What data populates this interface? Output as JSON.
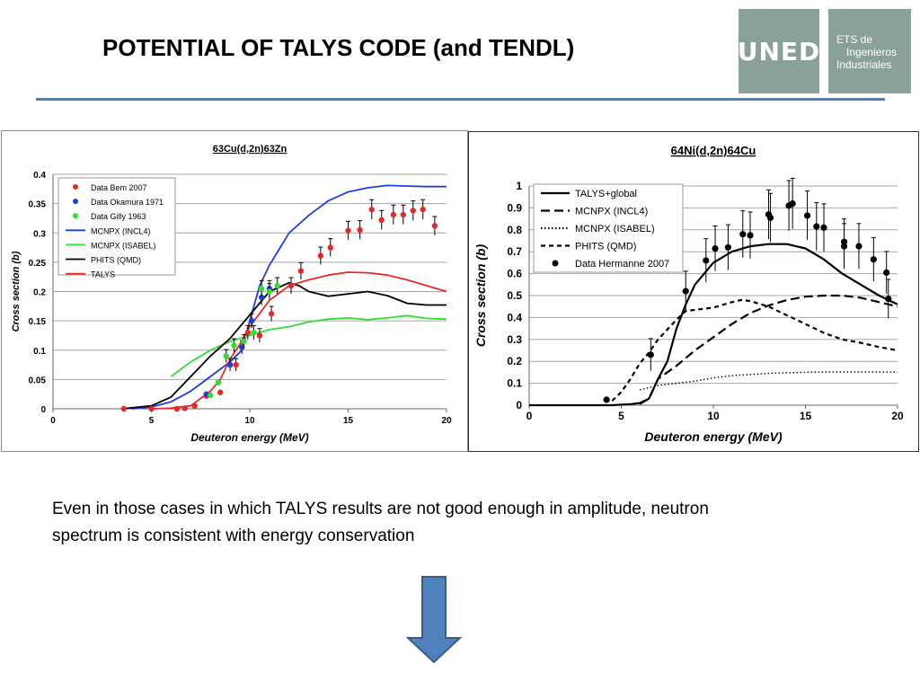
{
  "slide": {
    "title": "POTENTIAL OF TALYS CODE (and TENDL)",
    "logo_left_text": "UNED",
    "logo_right_lines": [
      "ETS de",
      "Ingenieros",
      "Industriales"
    ],
    "caption_line1": "Even in those cases in which TALYS results are not good enough in amplitude, neutron",
    "caption_line2": "spectrum is consistent with energy conservation",
    "accent_color": "#4f81bd",
    "logo_color": "#8aa19a",
    "arrow_icon": "down-arrow"
  },
  "chart_data": [
    {
      "type": "line",
      "title": "63Cu(d,2n)63Zn",
      "xlabel": "Deuteron energy (MeV)",
      "ylabel": "Cross section (b)",
      "xlim": [
        0,
        20
      ],
      "ylim": [
        0,
        0.4
      ],
      "xticks": [
        "0",
        "5",
        "10",
        "15",
        "20"
      ],
      "yticks": [
        "0",
        "0.05",
        "0.1",
        "0.15",
        "0.2",
        "0.25",
        "0.3",
        "0.35",
        "0.4"
      ],
      "grid": "horizontal",
      "legend_position": "top-left",
      "series": [
        {
          "name": "MCNPX (INCL4)",
          "kind": "line",
          "color": "#1f3fd8",
          "x": [
            4,
            5,
            6,
            7,
            8,
            9,
            9.6,
            10,
            10.5,
            11,
            12,
            13,
            14,
            15,
            16,
            17,
            18,
            19,
            20
          ],
          "y": [
            0,
            0.003,
            0.012,
            0.03,
            0.055,
            0.08,
            0.1,
            0.15,
            0.21,
            0.245,
            0.3,
            0.33,
            0.355,
            0.37,
            0.377,
            0.381,
            0.38,
            0.379,
            0.379
          ]
        },
        {
          "name": "MCNPX (ISABEL)",
          "kind": "line",
          "color": "#33dd33",
          "x": [
            6,
            7,
            8,
            9,
            10,
            11,
            12,
            13,
            14,
            15,
            16,
            17,
            18,
            19,
            20
          ],
          "y": [
            0.055,
            0.08,
            0.1,
            0.115,
            0.125,
            0.135,
            0.14,
            0.148,
            0.153,
            0.155,
            0.152,
            0.155,
            0.159,
            0.154,
            0.153
          ]
        },
        {
          "name": "PHITS (QMD)",
          "kind": "line",
          "color": "#000000",
          "x": [
            3.5,
            5,
            6,
            7,
            8,
            9,
            10,
            11,
            12,
            12.5,
            13,
            14,
            15,
            16,
            17,
            18,
            19,
            20
          ],
          "y": [
            0,
            0.005,
            0.02,
            0.055,
            0.09,
            0.12,
            0.16,
            0.2,
            0.215,
            0.21,
            0.2,
            0.192,
            0.196,
            0.2,
            0.193,
            0.18,
            0.177,
            0.177
          ]
        },
        {
          "name": "TALYS",
          "kind": "line",
          "color": "#e32a2a",
          "x": [
            5,
            6,
            7,
            8,
            8.5,
            9,
            9.5,
            10,
            11,
            12,
            13,
            14,
            15,
            16,
            17,
            18,
            19,
            20
          ],
          "y": [
            0,
            0.001,
            0.005,
            0.03,
            0.05,
            0.085,
            0.11,
            0.14,
            0.185,
            0.21,
            0.22,
            0.228,
            0.233,
            0.232,
            0.228,
            0.22,
            0.21,
            0.2
          ]
        },
        {
          "name": "Data Bem 2007",
          "kind": "points",
          "color": "#e32a2a",
          "x": [
            3.6,
            5,
            6.3,
            6.7,
            7.2,
            7.8,
            8.5,
            9.3,
            9.9,
            10.5,
            11.1,
            12.1,
            12.6,
            13.6,
            14.1,
            15,
            15.6,
            16.2,
            16.7,
            17.3,
            17.8,
            18.3,
            18.8,
            19.4
          ],
          "y": [
            0,
            0,
            0,
            0.001,
            0.005,
            0.022,
            0.028,
            0.075,
            0.13,
            0.125,
            0.162,
            0.21,
            0.235,
            0.261,
            0.275,
            0.304,
            0.305,
            0.34,
            0.322,
            0.331,
            0.331,
            0.338,
            0.34,
            0.312
          ]
        },
        {
          "name": "Data Okamura 1971",
          "kind": "points",
          "color": "#1f3fd8",
          "x": [
            7.8,
            8.4,
            9,
            9.6,
            10.1,
            10.6,
            11
          ],
          "y": [
            0.025,
            0.045,
            0.075,
            0.105,
            0.15,
            0.19,
            0.205
          ]
        },
        {
          "name": "Data Gilly 1963",
          "kind": "points",
          "color": "#33dd33",
          "x": [
            8,
            8.4,
            8.8,
            9.2,
            9.7,
            10.2,
            10.6,
            11,
            11.4
          ],
          "y": [
            0.023,
            0.045,
            0.09,
            0.108,
            0.115,
            0.13,
            0.205,
            0.2,
            0.21
          ]
        }
      ]
    },
    {
      "type": "line",
      "title": "64Ni(d,2n)64Cu",
      "xlabel": "Deuteron energy (MeV)",
      "ylabel": "Cross section (b)",
      "xlim": [
        0,
        20
      ],
      "ylim": [
        0,
        1
      ],
      "xticks": [
        "0",
        "5",
        "10",
        "15",
        "20"
      ],
      "yticks": [
        "0",
        "0.1",
        "0.2",
        "0.3",
        "0.4",
        "0.5",
        "0.6",
        "0.7",
        "0.8",
        "0.9",
        "1"
      ],
      "grid": "horizontal",
      "legend_position": "top-left",
      "series": [
        {
          "name": "TALYS+global",
          "kind": "line",
          "color": "#000000",
          "dash": "solid",
          "x": [
            0,
            4.5,
            5.5,
            6,
            6.5,
            7,
            7.5,
            8,
            8.5,
            9,
            10,
            11,
            12,
            13,
            14,
            15,
            16,
            17,
            18,
            19,
            20
          ],
          "y": [
            0,
            0,
            0.005,
            0.01,
            0.03,
            0.12,
            0.2,
            0.35,
            0.46,
            0.55,
            0.65,
            0.7,
            0.725,
            0.735,
            0.735,
            0.715,
            0.665,
            0.6,
            0.55,
            0.5,
            0.46
          ]
        },
        {
          "name": "MCNPX (INCL4)",
          "kind": "line",
          "color": "#000000",
          "dash": "longdash",
          "x": [
            6,
            6.5,
            7,
            8,
            9,
            10,
            11,
            12,
            13,
            14,
            15,
            16,
            17,
            18,
            19,
            20
          ],
          "y": [
            0.005,
            0.03,
            0.12,
            0.18,
            0.25,
            0.31,
            0.37,
            0.42,
            0.455,
            0.48,
            0.495,
            0.5,
            0.5,
            0.49,
            0.47,
            0.45
          ]
        },
        {
          "name": "MCNPX (ISABEL)",
          "kind": "line",
          "color": "#000000",
          "dash": "dotted",
          "x": [
            6,
            7,
            8,
            9,
            10,
            11,
            12,
            13,
            14,
            15,
            16,
            17,
            18,
            19,
            20
          ],
          "y": [
            0.07,
            0.09,
            0.1,
            0.11,
            0.125,
            0.135,
            0.14,
            0.145,
            0.148,
            0.15,
            0.152,
            0.152,
            0.152,
            0.152,
            0.15
          ]
        },
        {
          "name": "PHITS (QMD)",
          "kind": "line",
          "color": "#000000",
          "dash": "dashed",
          "x": [
            4.5,
            5,
            5.5,
            6,
            6.5,
            7,
            8,
            8.5,
            9,
            10,
            11,
            11.5,
            12,
            13,
            14,
            15,
            16,
            17,
            18,
            19,
            20
          ],
          "y": [
            0.02,
            0.06,
            0.12,
            0.19,
            0.24,
            0.3,
            0.39,
            0.43,
            0.435,
            0.445,
            0.47,
            0.48,
            0.475,
            0.45,
            0.41,
            0.37,
            0.33,
            0.3,
            0.285,
            0.265,
            0.25
          ]
        },
        {
          "name": "Data Hermanne 2007",
          "kind": "points",
          "color": "#000000",
          "x": [
            4.2,
            6.6,
            8.5,
            9.6,
            10.1,
            10.8,
            11.6,
            12,
            13,
            13.1,
            14.1,
            14.3,
            15.1,
            15.6,
            16,
            17.1,
            17.1,
            17.9,
            18.7,
            19.4,
            19.5
          ],
          "y": [
            0.025,
            0.23,
            0.52,
            0.66,
            0.715,
            0.72,
            0.78,
            0.775,
            0.87,
            0.855,
            0.91,
            0.92,
            0.865,
            0.815,
            0.81,
            0.745,
            0.725,
            0.725,
            0.665,
            0.605,
            0.485
          ]
        }
      ]
    }
  ]
}
